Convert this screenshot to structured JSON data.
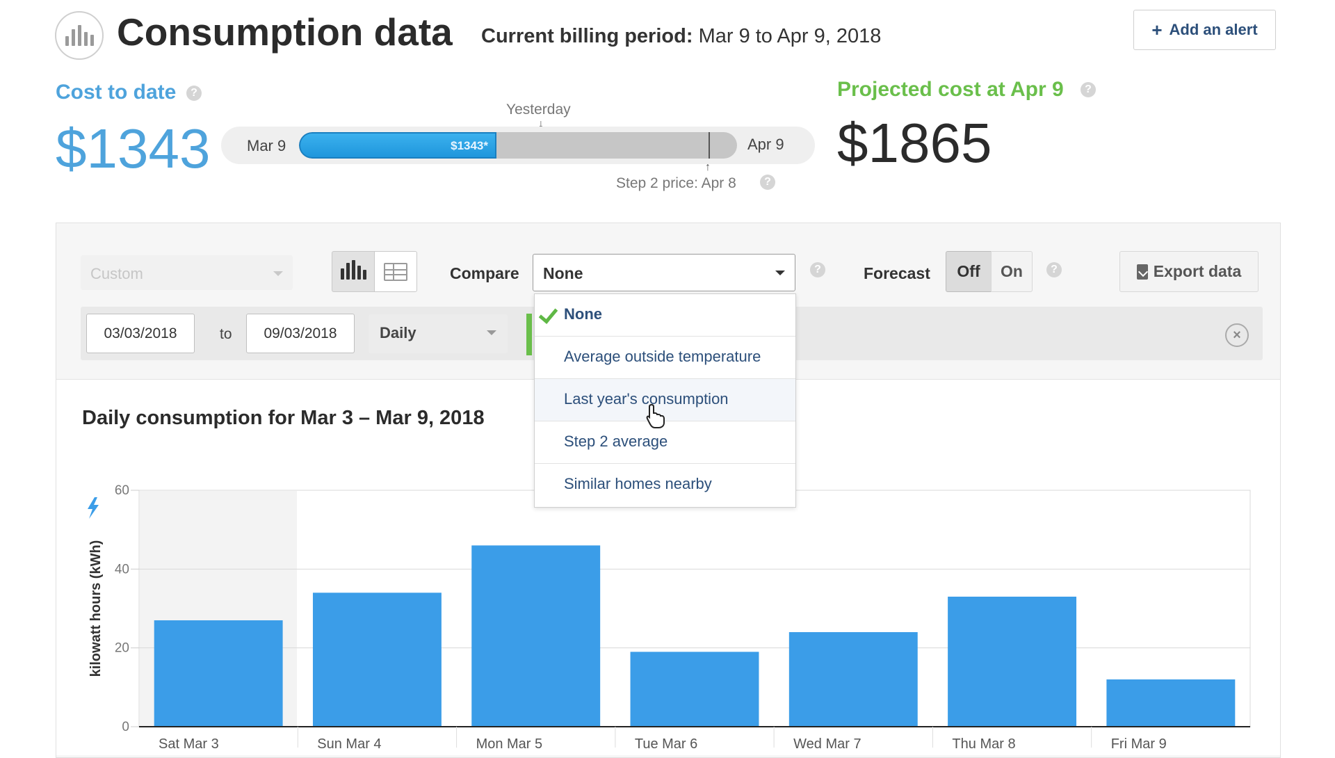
{
  "header": {
    "title": "Consumption data",
    "billing_label": "Current billing period:",
    "billing_value": "Mar 9 to Apr 9, 2018",
    "add_alert": "Add an alert",
    "logo_icon": "bar-chart-icon"
  },
  "cost": {
    "label": "Cost to date",
    "value": "$1343",
    "color": "#4ea3dc"
  },
  "progress": {
    "start": "Mar 9",
    "end": "Apr 9",
    "yesterday": "Yesterday",
    "fill_label": "$1343*",
    "fill_fraction": 0.45,
    "step_fraction": 0.935,
    "step_label": "Step 2 price: Apr 8"
  },
  "projected": {
    "label": "Projected cost at Apr 9",
    "value": "$1865",
    "color": "#6abf4b"
  },
  "toolbar": {
    "period": "Custom",
    "compare_label": "Compare",
    "compare_value": "None",
    "forecast_label": "Forecast",
    "forecast_off": "Off",
    "forecast_on": "On",
    "export": "Export data"
  },
  "date_range": {
    "from": "03/03/2018",
    "to_label": "to",
    "to": "09/03/2018",
    "interval": "Daily"
  },
  "dropdown": {
    "options": [
      "None",
      "Average outside temperature",
      "Last year's consumption",
      "Step 2 average",
      "Similar homes nearby"
    ],
    "selected": 0,
    "hovered": 2
  },
  "chart_data": {
    "type": "bar",
    "title": "Daily consumption for Mar 3 – Mar 9, 2018",
    "ylabel": "kilowatt hours (kWh)",
    "categories": [
      "Sat Mar 3",
      "Sun Mar 4",
      "Mon Mar 5",
      "Tue Mar 6",
      "Wed Mar 7",
      "Thu Mar 8",
      "Fri Mar 9"
    ],
    "values": [
      27,
      34,
      46,
      19,
      24,
      33,
      12
    ],
    "ylim": [
      0,
      60
    ],
    "yticks": [
      0,
      20,
      40,
      60
    ],
    "bar_color": "#3b9de8",
    "grid": true
  }
}
